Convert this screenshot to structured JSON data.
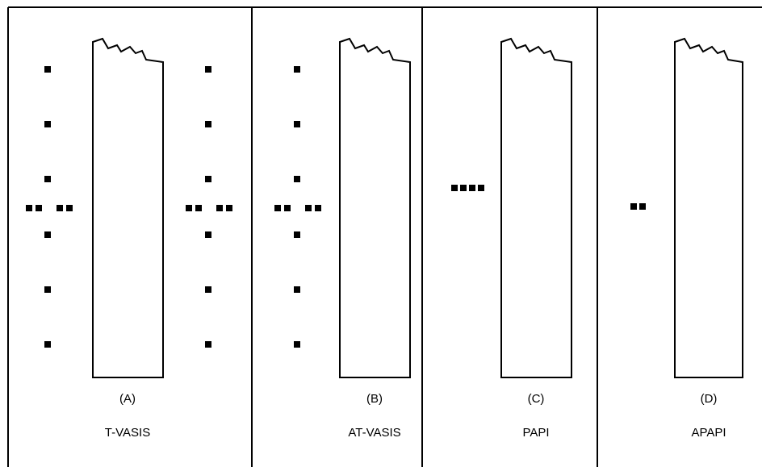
{
  "panels": [
    {
      "id": "A",
      "letter": "(A)",
      "name": "T-VASIS"
    },
    {
      "id": "B",
      "letter": "(B)",
      "name": "AT-VASIS"
    },
    {
      "id": "C",
      "letter": "(C)",
      "name": "PAPI"
    },
    {
      "id": "D",
      "letter": "(D)",
      "name": "APAPI"
    }
  ],
  "colors": {
    "line": "#000000",
    "background": "#ffffff"
  }
}
